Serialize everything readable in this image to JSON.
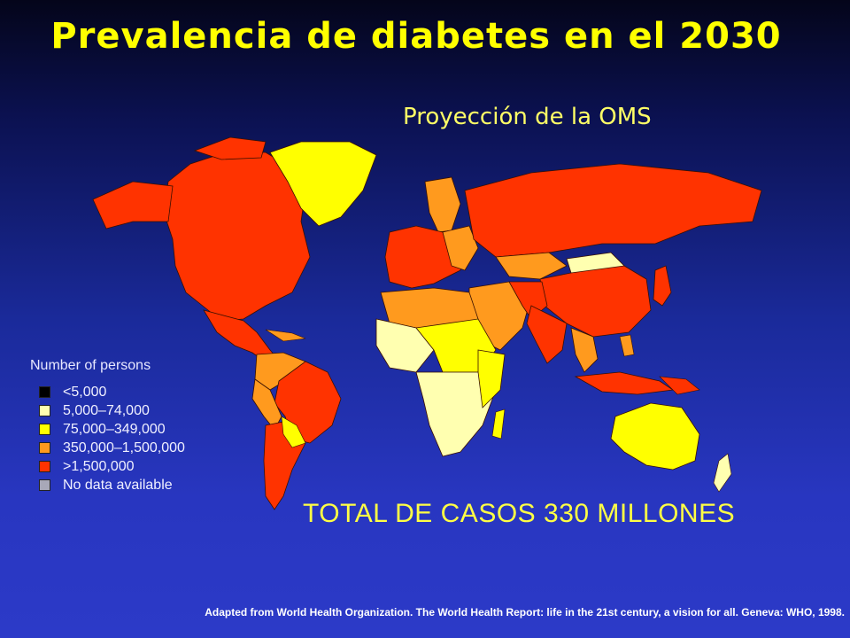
{
  "title": "Prevalencia de diabetes en el 2030",
  "subtitle": "Proyección de la OMS",
  "total": "TOTAL DE CASOS 330 MILLONES",
  "legend": {
    "title": "Number of persons",
    "items": [
      {
        "label": "<5,000",
        "color": "#000000"
      },
      {
        "label": "5,000–74,000",
        "color": "#ffffb0"
      },
      {
        "label": "75,000–349,000",
        "color": "#ffff00"
      },
      {
        "label": "350,000–1,500,000",
        "color": "#ff9a1e"
      },
      {
        "label": ">1,500,000",
        "color": "#ff3300"
      },
      {
        "label": "No data available",
        "color": "#a8a8b8"
      }
    ]
  },
  "source": "Adapted from World Health Organization. The World Health Report: life in the 21st century, a vision for all. Geneva: WHO, 1998."
}
